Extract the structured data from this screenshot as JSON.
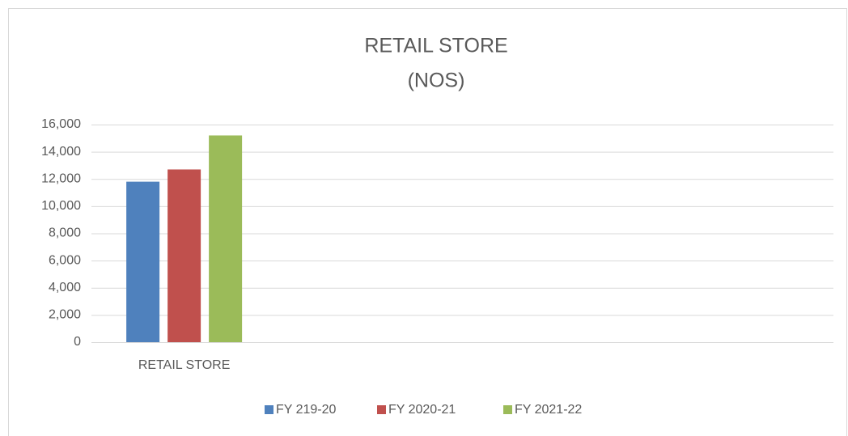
{
  "chart_data": {
    "type": "bar",
    "title": "RETAIL STORE",
    "subtitle": "(NOS)",
    "categories": [
      "RETAIL STORE",
      null,
      null,
      null
    ],
    "series": [
      {
        "name": "FY 219-20",
        "color": "#4f81bd",
        "values": [
          11800,
          null,
          null,
          null
        ]
      },
      {
        "name": "FY 2020-21",
        "color": "#c0504d",
        "values": [
          12700,
          null,
          null,
          null
        ]
      },
      {
        "name": "FY 2021-22",
        "color": "#9bbb59",
        "values": [
          15200,
          null,
          null,
          null
        ]
      }
    ],
    "ylim": [
      0,
      16000
    ],
    "yticks": [
      0,
      {
        "value": 2000,
        "label": "2,000"
      },
      {
        "value": 4000,
        "label": "4,000"
      },
      {
        "value": 6000,
        "label": "6,000"
      },
      {
        "value": 8000,
        "label": "8,000"
      },
      {
        "value": 10000,
        "label": "10,000"
      },
      {
        "value": 12000,
        "label": "12,000"
      },
      {
        "value": 14000,
        "label": "14,000"
      },
      {
        "value": 16000,
        "label": "16,000"
      }
    ],
    "grid": true,
    "legend": "bottom"
  }
}
